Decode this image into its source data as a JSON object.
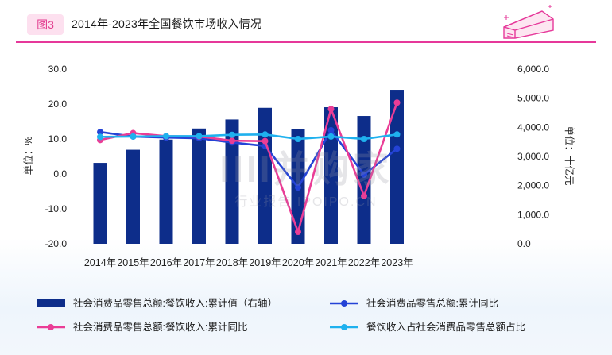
{
  "header": {
    "figure_badge": "图3",
    "title": "2014年-2023年全国餐饮市场收入情况"
  },
  "watermark": {
    "line1": "IIII并购家",
    "line2": "行业报告 IPOIPO.CN"
  },
  "chart_data": {
    "type": "bar+line",
    "categories": [
      "2014年",
      "2015年",
      "2016年",
      "2017年",
      "2018年",
      "2019年",
      "2020年",
      "2021年",
      "2022年",
      "2023年"
    ],
    "left_axis": {
      "label": "单位：%",
      "range": [
        -20,
        30
      ],
      "ticks": [
        "30.0",
        "20.0",
        "10.0",
        "0.0",
        "-10.0",
        "-20.0"
      ]
    },
    "right_axis": {
      "label": "单位：十亿元",
      "range": [
        0,
        6000
      ],
      "ticks": [
        "6,000.0",
        "5,000.0",
        "4,000.0",
        "3,000.0",
        "2,000.0",
        "1,000.0",
        "0.0"
      ]
    },
    "grid": false,
    "legend_position": "bottom",
    "series": [
      {
        "name": "社会消费品零售总额:餐饮收入:累计值（右轴）",
        "kind": "bar",
        "axis": "right",
        "color": "#0d2d8a",
        "values": [
          2780,
          3230,
          3580,
          3960,
          4270,
          4670,
          3950,
          4690,
          4390,
          5290
        ]
      },
      {
        "name": "社会消费品零售总额:累计同比",
        "kind": "line",
        "axis": "left",
        "color": "#2443d6",
        "values": [
          12.0,
          10.7,
          10.4,
          10.2,
          9.0,
          8.0,
          -3.9,
          12.5,
          -0.2,
          7.2
        ]
      },
      {
        "name": "社会消费品零售总额:餐饮收入:累计同比",
        "kind": "line",
        "axis": "left",
        "color": "#ea3d96",
        "values": [
          9.7,
          11.7,
          10.8,
          10.7,
          9.5,
          9.4,
          -16.6,
          18.6,
          -6.3,
          20.4
        ]
      },
      {
        "name": "餐饮收入占社会消费品零售总额占比",
        "kind": "line",
        "axis": "left",
        "color": "#1fb1ee",
        "values": [
          10.6,
          10.7,
          10.8,
          10.8,
          11.2,
          11.3,
          10.0,
          10.7,
          10.0,
          11.3
        ]
      }
    ]
  },
  "colors": {
    "accent": "#e6389a",
    "bar": "#0d2d8a",
    "line_blue": "#2443d6",
    "line_pink": "#ea3d96",
    "line_cyan": "#1fb1ee"
  }
}
